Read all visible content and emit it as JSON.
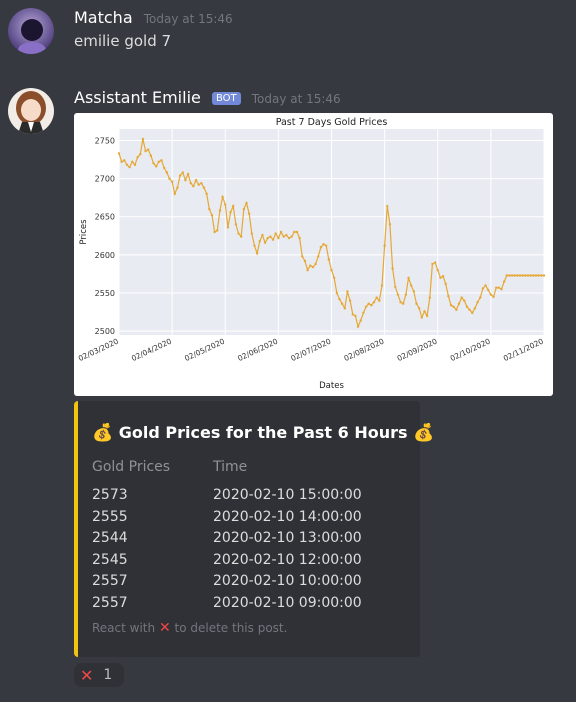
{
  "messages": [
    {
      "username": "Matcha",
      "timestamp": "Today at 15:46",
      "content": "emilie gold 7"
    },
    {
      "username": "Assistant Emilie",
      "bot_tag": "BOT",
      "timestamp": "Today at 15:46"
    }
  ],
  "chart_data": {
    "type": "line",
    "title": "Past 7 Days Gold Prices",
    "xlabel": "Dates",
    "ylabel": "Prices",
    "ylim": [
      2495,
      2765
    ],
    "yticks": [
      2500,
      2550,
      2600,
      2650,
      2700,
      2750
    ],
    "xticks": [
      "02/03/2020",
      "02/04/2020",
      "02/05/2020",
      "02/06/2020",
      "02/07/2020",
      "02/08/2020",
      "02/09/2020",
      "02/10/2020",
      "02/11/2020"
    ],
    "grid": true,
    "line_color": "#e6a835",
    "series": [
      {
        "x": [
          0.0,
          0.05,
          0.1,
          0.15,
          0.2,
          0.25,
          0.3,
          0.35,
          0.4,
          0.45,
          0.5,
          0.55,
          0.6,
          0.65,
          0.7,
          0.75,
          0.8,
          0.85,
          0.9,
          0.95,
          1.0,
          1.05,
          1.1,
          1.15,
          1.2,
          1.25,
          1.3,
          1.35,
          1.4,
          1.45,
          1.5,
          1.55,
          1.6,
          1.65,
          1.7,
          1.75,
          1.8,
          1.85,
          1.9,
          1.95,
          2.0,
          2.05,
          2.1,
          2.15,
          2.2,
          2.25,
          2.3,
          2.35,
          2.4,
          2.45,
          2.5,
          2.55,
          2.6,
          2.65,
          2.7,
          2.75,
          2.8,
          2.85,
          2.9,
          2.95,
          3.0,
          3.05,
          3.1,
          3.15,
          3.2,
          3.25,
          3.3,
          3.35,
          3.4,
          3.45,
          3.5,
          3.55,
          3.6,
          3.65,
          3.7,
          3.75,
          3.8,
          3.85,
          3.9,
          3.95,
          4.0,
          4.05,
          4.1,
          4.15,
          4.2,
          4.25,
          4.3,
          4.35,
          4.4,
          4.45,
          4.5,
          4.55,
          4.6,
          4.65,
          4.7,
          4.75,
          4.8,
          4.85,
          4.9,
          4.95,
          5.0,
          5.05,
          5.1,
          5.15,
          5.2,
          5.25,
          5.3,
          5.35,
          5.4,
          5.45,
          5.5,
          5.55,
          5.6,
          5.65,
          5.7,
          5.75,
          5.8,
          5.85,
          5.9,
          5.95,
          6.0,
          6.05,
          6.1,
          6.15,
          6.2,
          6.25,
          6.3,
          6.35,
          6.4,
          6.45,
          6.5,
          6.55,
          6.6,
          6.65,
          6.7,
          6.75,
          6.8,
          6.85,
          6.9,
          6.95,
          7.0,
          7.05,
          7.1,
          7.15,
          7.2,
          7.25,
          7.3,
          7.35,
          7.4,
          7.45,
          7.5,
          7.55,
          7.6,
          7.65,
          7.7,
          7.75,
          7.8,
          7.85,
          7.9,
          7.95,
          8.0
        ],
        "y": [
          2733,
          2722,
          2724,
          2718,
          2715,
          2722,
          2718,
          2728,
          2732,
          2752,
          2736,
          2738,
          2730,
          2720,
          2716,
          2722,
          2724,
          2714,
          2708,
          2700,
          2696,
          2680,
          2688,
          2704,
          2708,
          2698,
          2706,
          2694,
          2690,
          2698,
          2692,
          2694,
          2688,
          2680,
          2660,
          2652,
          2630,
          2632,
          2658,
          2676,
          2666,
          2636,
          2656,
          2664,
          2640,
          2628,
          2624,
          2660,
          2668,
          2654,
          2628,
          2612,
          2602,
          2618,
          2626,
          2616,
          2622,
          2624,
          2620,
          2628,
          2622,
          2630,
          2624,
          2626,
          2622,
          2624,
          2630,
          2630,
          2622,
          2598,
          2592,
          2580,
          2586,
          2584,
          2588,
          2598,
          2610,
          2614,
          2612,
          2594,
          2580,
          2570,
          2550,
          2542,
          2536,
          2530,
          2552,
          2540,
          2522,
          2520,
          2506,
          2514,
          2524,
          2532,
          2536,
          2534,
          2538,
          2544,
          2540,
          2560,
          2612,
          2664,
          2640,
          2582,
          2558,
          2548,
          2538,
          2536,
          2548,
          2570,
          2560,
          2552,
          2536,
          2530,
          2518,
          2526,
          2520,
          2544,
          2588,
          2590,
          2580,
          2570,
          2572,
          2562,
          2546,
          2534,
          2532,
          2528,
          2536,
          2544,
          2540,
          2532,
          2528,
          2524,
          2530,
          2538,
          2544,
          2556,
          2560,
          2554,
          2548,
          2545,
          2557,
          2557,
          2555,
          2565,
          2573,
          2573,
          2573,
          2573,
          2573,
          2573,
          2573,
          2573,
          2573,
          2573,
          2573,
          2573,
          2573,
          2573,
          2573
        ]
      }
    ]
  },
  "embed": {
    "title": "Gold Prices for the Past 6 Hours",
    "money_icon": "money-bag-icon",
    "accent_color": "#f1c40f",
    "columns": [
      "Gold Prices",
      "Time"
    ],
    "rows": [
      [
        "2573",
        "2020-02-10 15:00:00"
      ],
      [
        "2555",
        "2020-02-10 14:00:00"
      ],
      [
        "2544",
        "2020-02-10 13:00:00"
      ],
      [
        "2545",
        "2020-02-10 12:00:00"
      ],
      [
        "2557",
        "2020-02-10 10:00:00"
      ],
      [
        "2557",
        "2020-02-10 09:00:00"
      ]
    ],
    "footer_prefix": "React with",
    "footer_suffix": "to delete this post."
  },
  "reaction": {
    "emoji": "❌",
    "count": "1"
  }
}
